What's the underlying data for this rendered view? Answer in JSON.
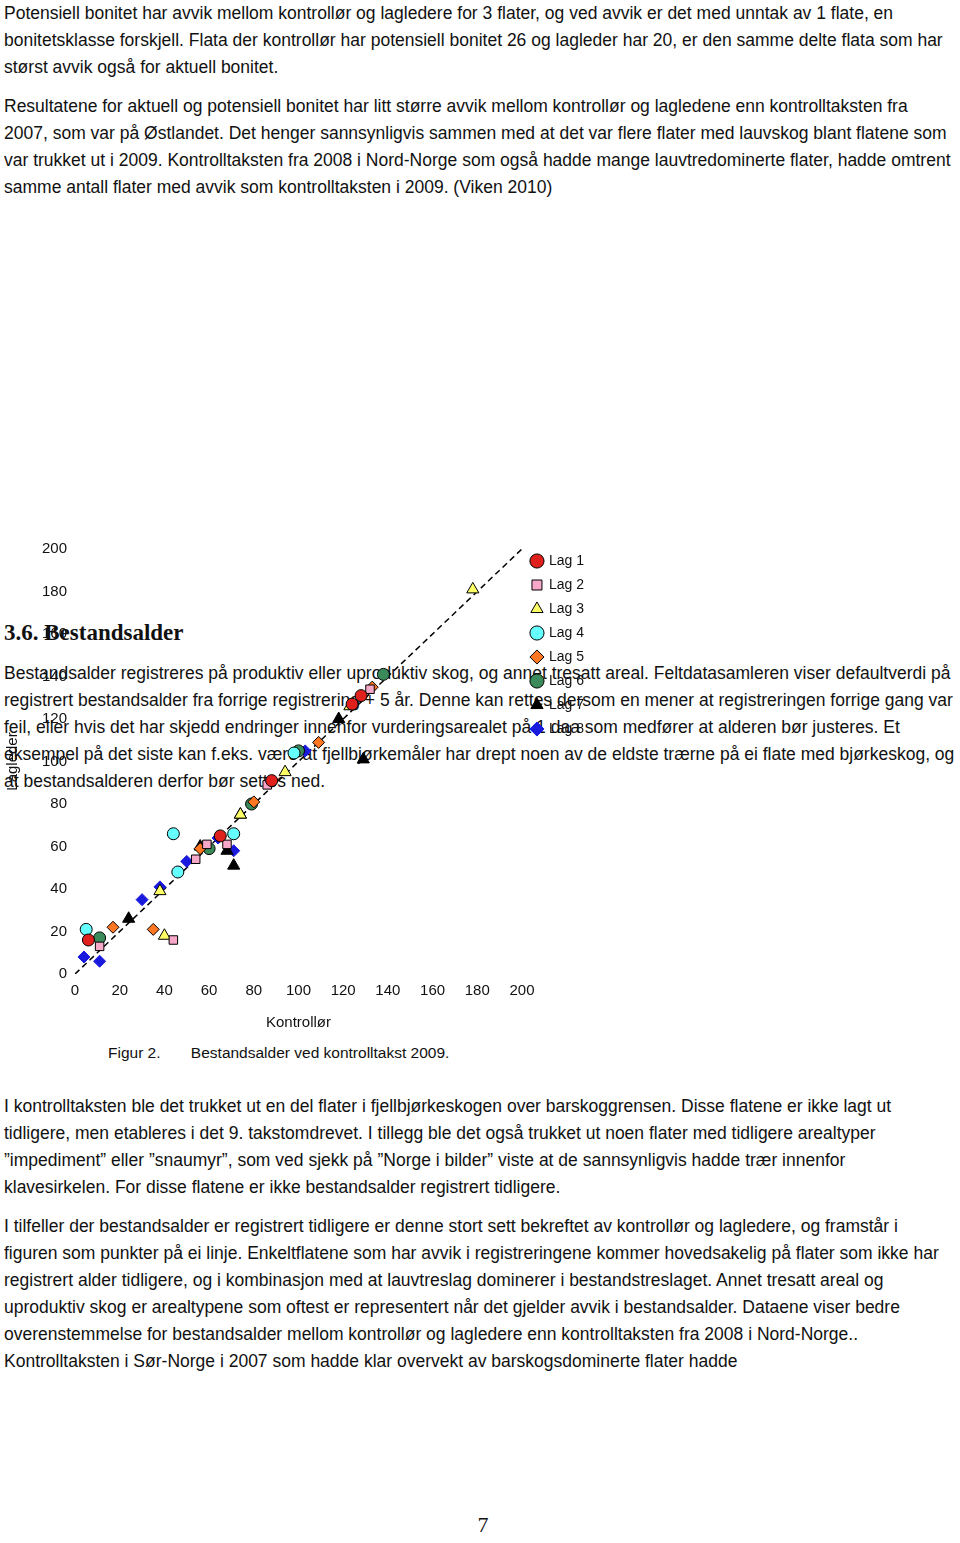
{
  "paragraphs_before": [
    "Potensiell bonitet har avvik mellom kontrollør og lagledere for 3 flater, og ved avvik er det med unntak av 1 flate, en bonitetsklasse forskjell. Flata der kontrollør har potensiell bonitet 26 og lagleder har 20, er den samme delte flata som har størst avvik også for aktuell bonitet.",
    "Resultatene for aktuell og potensiell bonitet har litt større avvik mellom kontrollør og lagledene enn kontrolltaksten fra 2007, som var på Østlandet. Det henger sannsynligvis sammen med at det var flere flater med lauvskog blant flatene som var trukket ut i 2009. Kontrolltaksten fra 2008 i Nord-Norge som også hadde mange lauvtredominerte flater, hadde omtrent samme antall flater med avvik som kontrolltaksten i 2009. (Viken 2010)"
  ],
  "heading": "3.6. Bestandsalder",
  "section_paragraphs": [
    "Bestandsalder registreres på produktiv eller uproduktiv skog, og annet tresatt areal. Feltdatasamleren viser defaultverdi på registrert bestandsalder fra forrige registrering + 5 år. Denne kan rettes dersom en mener at registreringen forrige gang var feil, eller hvis det har skjedd endringer innenfor vurderingsarealet på 1 daa som medfører at alderen bør justeres. Et eksempel på det siste kan f.eks. være at fjellbjørkemåler har drept noen av de eldste trærne på ei flate med bjørkeskog, og at bestandsalderen derfor bør settes ned."
  ],
  "chart_data": {
    "type": "scatter",
    "x_label": "Kontrollør",
    "y_label": "Lagleder",
    "xlim": [
      0,
      200
    ],
    "ylim": [
      0,
      200
    ],
    "xticks": [
      0,
      20,
      40,
      60,
      80,
      100,
      120,
      140,
      160,
      180,
      200
    ],
    "yticks": [
      0,
      20,
      40,
      60,
      80,
      100,
      120,
      140,
      160,
      180,
      200
    ],
    "grid": false,
    "legend": "right",
    "series": [
      {
        "name": "Lag 1",
        "color": "#e0201c",
        "marker": "circle",
        "x": [
          6,
          65,
          88,
          124,
          128
        ],
        "values": [
          16,
          65,
          91,
          127,
          131
        ]
      },
      {
        "name": "Lag 2",
        "color": "#f7a8c8",
        "marker": "square",
        "x": [
          11,
          44,
          54,
          59,
          68,
          86,
          132
        ],
        "values": [
          13,
          16,
          54,
          61,
          61,
          89,
          134
        ]
      },
      {
        "name": "Lag 3",
        "color": "#ffff66",
        "marker": "triangle",
        "x": [
          38,
          40,
          74,
          94,
          123,
          178
        ],
        "values": [
          39,
          18,
          75,
          95,
          126,
          181
        ]
      },
      {
        "name": "Lag 4",
        "color": "#66ffff",
        "marker": "circle",
        "x": [
          5,
          44,
          46,
          71,
          98
        ],
        "values": [
          21,
          66,
          48,
          66,
          104
        ]
      },
      {
        "name": "Lag 5",
        "color": "#ff7722",
        "marker": "diamond",
        "x": [
          17,
          35,
          56,
          80,
          109,
          133
        ],
        "values": [
          22,
          21,
          59,
          81,
          109,
          135
        ]
      },
      {
        "name": "Lag 6",
        "color": "#3a8a5a",
        "marker": "circle",
        "x": [
          11,
          60,
          79,
          100,
          138
        ],
        "values": [
          17,
          59,
          80,
          105,
          141
        ]
      },
      {
        "name": "Lag 7",
        "color": "#000000",
        "marker": "triangle",
        "x": [
          24,
          56,
          68,
          71,
          74,
          118,
          129
        ],
        "values": [
          26,
          60,
          58,
          51,
          75,
          120,
          101
        ]
      },
      {
        "name": "Lag 8",
        "color": "#1a1adf",
        "marker": "diamond",
        "x": [
          4,
          11,
          30,
          38,
          50,
          64,
          71,
          103
        ],
        "values": [
          8,
          6,
          35,
          41,
          53,
          64,
          58,
          105
        ]
      }
    ],
    "reference_line": {
      "x": [
        0,
        200
      ],
      "values": [
        0,
        200
      ],
      "color": "#000000",
      "line_style": "dashed"
    }
  },
  "figure_caption": {
    "label": "Figur 2.",
    "text": "Bestandsalder ved kontrolltakst 2009."
  },
  "paragraphs_after": [
    "I kontrolltaksten ble det trukket ut en del flater i fjellbjørkeskogen over barskoggrensen. Disse flatene er ikke lagt ut tidligere, men etableres i det 9. takstomdrevet. I tillegg ble det også trukket ut noen flater med tidligere arealtyper ”impediment” eller ”snaumyr”, som ved sjekk på ”Norge i bilder” viste at de sannsynligvis hadde trær innenfor klavesirkelen. For disse flatene er ikke bestandsalder registrert tidligere.",
    "I tilfeller der bestandsalder er registrert tidligere er denne stort sett bekreftet av kontrollør og lagledere, og framstår i figuren som punkter på ei linje. Enkeltflatene som har avvik i registreringene kommer hovedsakelig på flater som ikke har registrert alder tidligere, og i kombinasjon med at lauvtreslag dominerer i bestandstreslaget. Annet tresatt areal og uproduktiv skog er arealtypene som oftest er representert når det gjelder avvik i bestandsalder. Dataene viser bedre overenstemmelse for bestandsalder mellom kontrollør og lagledere enn kontrolltaksten fra 2008 i Nord-Norge.. Kontrolltaksten i Sør-Norge i 2007 som hadde klar overvekt av barskogsdominerte flater hadde"
  ],
  "page_number": 7
}
